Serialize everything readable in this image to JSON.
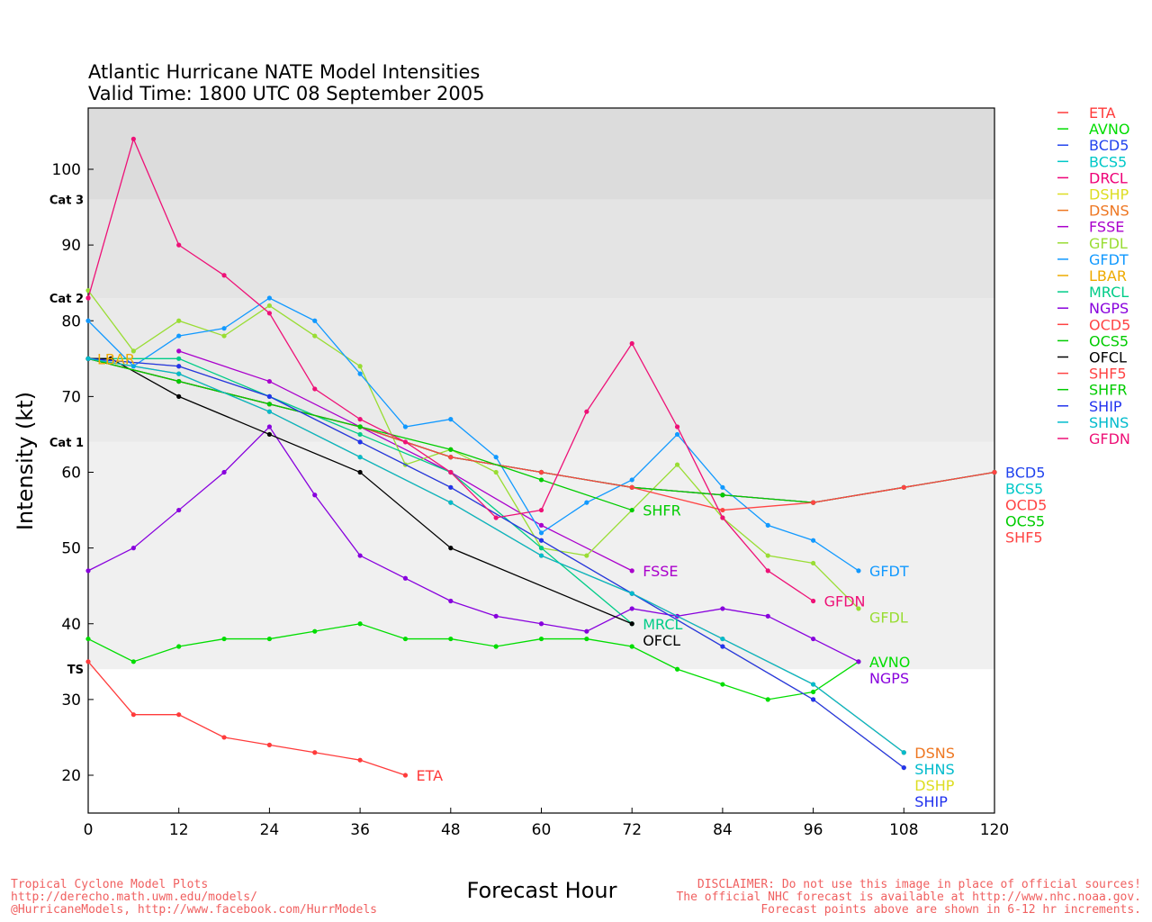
{
  "chart_data": {
    "type": "line",
    "title": "Atlantic Hurricane NATE Model Intensities",
    "subtitle": "Valid Time: 1800 UTC 08 September 2005",
    "xlabel": "Forecast Hour",
    "ylabel": "Intensity (kt)",
    "xlim": [
      0,
      120
    ],
    "ylim": [
      15,
      108
    ],
    "xticks": [
      0,
      12,
      24,
      36,
      48,
      60,
      72,
      84,
      96,
      108,
      120
    ],
    "yticks": [
      20,
      30,
      40,
      50,
      60,
      70,
      80,
      90,
      100
    ],
    "bands": [
      {
        "label": "Cat 3",
        "from": 96,
        "to": 108,
        "color": "#dcdcdc"
      },
      {
        "label": "Cat 2",
        "from": 83,
        "to": 96,
        "color": "#e4e4e4"
      },
      {
        "label": "Cat 1",
        "from": 64,
        "to": 83,
        "color": "#eaeaea"
      },
      {
        "label": "TS",
        "from": 34,
        "to": 64,
        "color": "#f0f0f0"
      }
    ],
    "legend_position": "right",
    "series": [
      {
        "name": "ETA",
        "color": "#ff3b3b",
        "x": [
          0,
          6,
          12,
          18,
          24,
          30,
          36,
          42
        ],
        "y": [
          35,
          28,
          28,
          25,
          24,
          23,
          22,
          20
        ],
        "end_label": "ETA"
      },
      {
        "name": "AVNO",
        "color": "#00dd00",
        "x": [
          0,
          6,
          12,
          18,
          24,
          30,
          36,
          42,
          48,
          54,
          60,
          66,
          72,
          78,
          84,
          90,
          96,
          102
        ],
        "y": [
          38,
          35,
          37,
          38,
          38,
          39,
          40,
          38,
          38,
          37,
          38,
          38,
          37,
          34,
          32,
          30,
          31,
          35
        ],
        "end_label": "AVNO"
      },
      {
        "name": "BCD5",
        "color": "#2244ee",
        "x": [
          0,
          12,
          24,
          36,
          48,
          60,
          72,
          84,
          96,
          108,
          120
        ],
        "y": [
          75,
          72,
          69,
          66,
          62,
          60,
          58,
          57,
          56,
          58,
          60
        ],
        "end_label": "BCD5"
      },
      {
        "name": "BCS5",
        "color": "#00c8c8",
        "x": [
          0,
          12,
          24,
          36,
          48,
          60,
          72,
          84,
          96,
          108,
          120
        ],
        "y": [
          75,
          72,
          69,
          66,
          62,
          60,
          58,
          57,
          56,
          58,
          60
        ],
        "end_label": "BCS5"
      },
      {
        "name": "DRCL",
        "color": "#ee0077",
        "x": [
          0
        ],
        "y": [
          83
        ],
        "end_label": ""
      },
      {
        "name": "DSHP",
        "color": "#dddd22",
        "x": [
          0,
          12,
          24,
          36,
          48,
          60,
          72,
          84,
          96,
          108
        ],
        "y": [
          75,
          74,
          70,
          64,
          58,
          51,
          44,
          37,
          30,
          21
        ],
        "end_label": "DSHP"
      },
      {
        "name": "DSNS",
        "color": "#ee7722",
        "x": [
          0,
          12,
          24,
          36,
          48,
          60,
          72,
          84,
          96,
          108
        ],
        "y": [
          75,
          73,
          68,
          62,
          56,
          49,
          44,
          38,
          32,
          23
        ],
        "end_label": "DSNS"
      },
      {
        "name": "FSSE",
        "color": "#aa00cc",
        "x": [
          12,
          24,
          36,
          48,
          60,
          72
        ],
        "y": [
          76,
          72,
          66,
          60,
          53,
          47
        ],
        "end_label": "FSSE"
      },
      {
        "name": "GFDL",
        "color": "#99dd33",
        "x": [
          0,
          6,
          12,
          18,
          24,
          30,
          36,
          42,
          48,
          54,
          60,
          66,
          78,
          84,
          90,
          96,
          102
        ],
        "y": [
          84,
          76,
          80,
          78,
          82,
          78,
          74,
          61,
          63,
          60,
          50,
          49,
          61,
          54,
          49,
          48,
          42
        ],
        "end_label": "GFDL"
      },
      {
        "name": "GFDT",
        "color": "#1199ff",
        "x": [
          0,
          6,
          12,
          18,
          24,
          30,
          36,
          42,
          48,
          54,
          60,
          66,
          72,
          78,
          84,
          90,
          96,
          102
        ],
        "y": [
          80,
          74,
          78,
          79,
          83,
          80,
          73,
          66,
          67,
          62,
          52,
          56,
          59,
          65,
          58,
          53,
          51,
          47
        ],
        "end_label": "GFDT"
      },
      {
        "name": "LBAR",
        "color": "#eeaa00",
        "x": [
          0
        ],
        "y": [
          75
        ],
        "end_label": "LBAR"
      },
      {
        "name": "MRCL",
        "color": "#00cc88",
        "x": [
          0,
          12,
          24,
          36,
          48,
          60,
          72
        ],
        "y": [
          75,
          75,
          70,
          65,
          60,
          50,
          40
        ],
        "end_label": "MRCL"
      },
      {
        "name": "NGPS",
        "color": "#8800dd",
        "x": [
          0,
          6,
          12,
          18,
          24,
          30,
          36,
          42,
          48,
          54,
          60,
          66,
          72,
          78,
          84,
          90,
          96,
          102
        ],
        "y": [
          47,
          50,
          55,
          60,
          66,
          57,
          49,
          46,
          43,
          41,
          40,
          39,
          42,
          41,
          42,
          41,
          38,
          35
        ],
        "end_label": "NGPS"
      },
      {
        "name": "OCD5",
        "color": "#ff4444",
        "x": [
          0,
          12,
          24,
          36,
          48,
          60,
          72,
          84,
          96,
          108,
          120
        ],
        "y": [
          75,
          72,
          69,
          66,
          62,
          60,
          58,
          57,
          56,
          58,
          60
        ],
        "end_label": "OCD5"
      },
      {
        "name": "OCS5",
        "color": "#00cc00",
        "x": [
          0,
          12,
          24,
          36,
          48,
          60,
          72,
          84,
          96,
          108,
          120
        ],
        "y": [
          75,
          72,
          69,
          66,
          62,
          60,
          58,
          57,
          56,
          58,
          60
        ],
        "end_label": "OCS5"
      },
      {
        "name": "OFCL",
        "color": "#000000",
        "x": [
          0,
          3,
          12,
          24,
          36,
          48,
          72
        ],
        "y": [
          75,
          75,
          70,
          65,
          60,
          50,
          40
        ],
        "end_label": "OFCL"
      },
      {
        "name": "SHF5",
        "color": "#ff4444",
        "x": [
          0,
          12,
          24,
          36,
          48,
          60,
          72,
          84,
          96,
          108,
          120
        ],
        "y": [
          75,
          72,
          69,
          66,
          62,
          60,
          58,
          55,
          56,
          58,
          60
        ],
        "end_label": "SHF5"
      },
      {
        "name": "SHFR",
        "color": "#00cc00",
        "x": [
          0,
          12,
          24,
          36,
          48,
          60,
          72
        ],
        "y": [
          75,
          72,
          69,
          66,
          63,
          59,
          55
        ],
        "end_label": "SHFR"
      },
      {
        "name": "SHIP",
        "color": "#2233ee",
        "x": [
          0,
          12,
          24,
          36,
          48,
          60,
          72,
          84,
          96,
          108
        ],
        "y": [
          75,
          74,
          70,
          64,
          58,
          51,
          44,
          37,
          30,
          21
        ],
        "end_label": "SHIP"
      },
      {
        "name": "SHNS",
        "color": "#00bbcc",
        "x": [
          0,
          12,
          24,
          36,
          48,
          60,
          72,
          84,
          96,
          108
        ],
        "y": [
          75,
          73,
          68,
          62,
          56,
          49,
          44,
          38,
          32,
          23
        ],
        "end_label": "SHNS"
      },
      {
        "name": "GFDN",
        "color": "#ee1177",
        "x": [
          0,
          6,
          12,
          18,
          24,
          30,
          36,
          42,
          48,
          54,
          60,
          66,
          72,
          78,
          84,
          90,
          96
        ],
        "y": [
          83,
          104,
          90,
          86,
          81,
          71,
          67,
          64,
          60,
          54,
          55,
          68,
          77,
          66,
          54,
          47,
          43
        ],
        "end_label": "GFDN"
      }
    ]
  },
  "footer": {
    "left": [
      "Tropical Cyclone Model Plots",
      "http://derecho.math.uwm.edu/models/",
      "@HurricaneModels, http://www.facebook.com/HurrModels"
    ],
    "right": [
      "DISCLAIMER: Do not use this image in place of official sources!",
      "The official NHC forecast is available at http://www.nhc.noaa.gov.",
      "Forecast points above are shown in 6-12 hr increments."
    ]
  }
}
